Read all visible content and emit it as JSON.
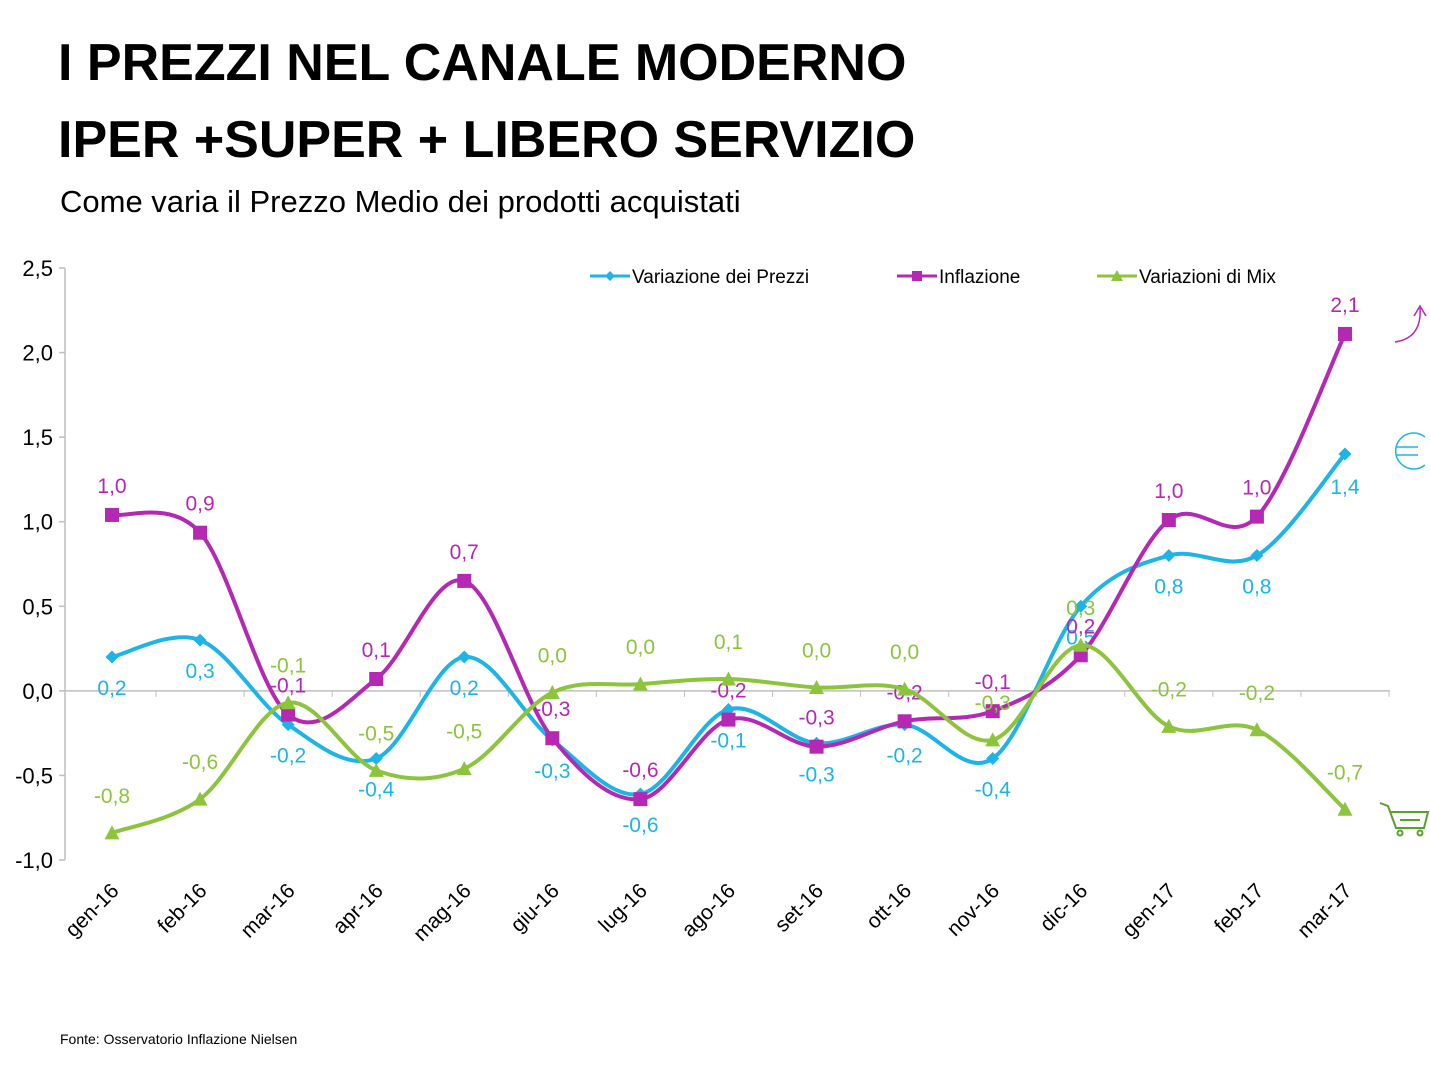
{
  "title_lines": [
    "I PREZZI NEL CANALE MODERNO",
    "IPER +SUPER + LIBERO SERVIZIO"
  ],
  "subtitle": "Come varia il Prezzo Medio dei prodotti acquistati",
  "source": "Fonte: Osservatorio Inflazione Nielsen",
  "chart_data": {
    "type": "line",
    "categories": [
      "gen-16",
      "feb-16",
      "mar-16",
      "apr-16",
      "mag-16",
      "giu-16",
      "lug-16",
      "ago-16",
      "set-16",
      "ott-16",
      "nov-16",
      "dic-16",
      "gen-17",
      "feb-17",
      "mar-17"
    ],
    "ylim": [
      -1.0,
      2.5
    ],
    "yticks": [
      {
        "value": -1.0,
        "label": "-1,0"
      },
      {
        "value": -0.5,
        "label": "-0,5"
      },
      {
        "value": 0,
        "label": "0,0"
      },
      {
        "value": 0.5,
        "label": "0,5"
      },
      {
        "value": 1.0,
        "label": "1,0"
      },
      {
        "value": 1.5,
        "label": "1,5"
      },
      {
        "value": 2.0,
        "label": "2,0"
      },
      {
        "value": 2.5,
        "label": "2,5"
      }
    ],
    "grid": false,
    "legend": "top",
    "series": [
      {
        "name": "Variazione dei Prezzi",
        "color": "#1eb4e6",
        "marker": "diamond",
        "values": [
          0.2,
          0.3,
          -0.2,
          -0.4,
          0.2,
          -0.29,
          -0.61,
          -0.11,
          -0.31,
          -0.2,
          -0.4,
          0.5,
          0.8,
          0.8,
          1.4
        ],
        "value_labels": [
          "0,2",
          "0,3",
          "-0,2",
          "-0,4",
          "0,2",
          "-0,3",
          "-0,6",
          "-0,1",
          "-0,3",
          "-0,2",
          "-0,4",
          "0,5",
          "0,8",
          "0,8",
          "1,4"
        ]
      },
      {
        "name": "Inflazione",
        "color": "#b428b4",
        "marker": "square",
        "values": [
          1.04,
          0.935,
          -0.14,
          0.07,
          0.65,
          -0.28,
          -0.64,
          -0.17,
          -0.33,
          -0.18,
          -0.12,
          0.21,
          1.01,
          1.03,
          2.11
        ],
        "value_labels": [
          "1,0",
          "0,9",
          "-0,1",
          "0,1",
          "0,7",
          "-0,3",
          "-0,6",
          "-0,2",
          "-0,3",
          "-0,2",
          "-0,1",
          "0,2",
          "1,0",
          "1,0",
          "2,1"
        ]
      },
      {
        "name": "Variazioni di Mix",
        "color": "#8cc43c",
        "marker": "triangle",
        "values": [
          -0.84,
          -0.64,
          -0.07,
          -0.47,
          -0.46,
          -0.01,
          0.04,
          0.07,
          0.02,
          0.01,
          -0.29,
          0.27,
          -0.21,
          -0.23,
          -0.7
        ],
        "value_labels": [
          "-0,8",
          "-0,6",
          "-0,1",
          "-0,5",
          "-0,5",
          "0,0",
          "0,0",
          "0,1",
          "0,0",
          "0,0",
          "-0,3",
          "0,3",
          "-0,2",
          "-0,2",
          "-0,7"
        ]
      }
    ]
  }
}
